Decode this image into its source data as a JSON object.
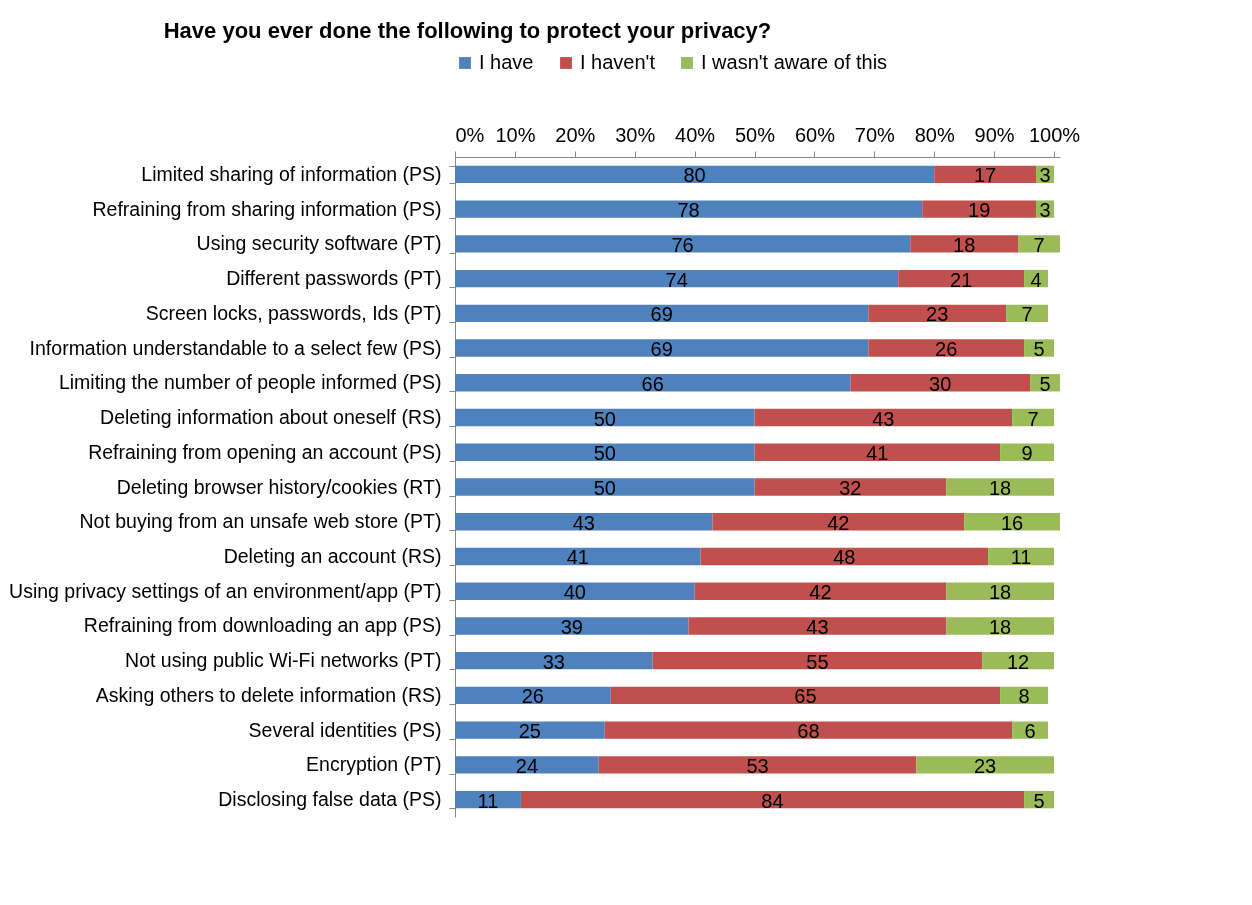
{
  "chart_data": {
    "type": "bar",
    "orientation": "horizontal",
    "stacked": true,
    "title": "Have you ever done the following to protect your privacy?",
    "categories": [
      "Limited sharing of information (PS)",
      "Refraining from sharing information (PS)",
      "Using security software (PT)",
      "Different passwords (PT)",
      "Screen locks, passwords, Ids (PT)",
      "Information understandable to a select few (PS)",
      "Limiting the number of people informed (PS)",
      "Deleting information about oneself (RS)",
      "Refraining from opening an account (PS)",
      "Deleting browser history/cookies (RT)",
      "Not buying from an unsafe web store (PT)",
      "Deleting an account (RS)",
      "Using privacy settings of an environment/app (PT)",
      "Refraining from downloading an app (PS)",
      "Not using public Wi-Fi networks (PT)",
      "Asking others to delete information (RS)",
      "Several identities (PS)",
      "Encryption (PT)",
      "Disclosing false data (PS)"
    ],
    "series": [
      {
        "name": "I have",
        "color": "#4f81bd",
        "values": [
          80,
          78,
          76,
          74,
          69,
          69,
          66,
          50,
          50,
          50,
          43,
          41,
          40,
          39,
          33,
          26,
          25,
          24,
          11
        ]
      },
      {
        "name": "I haven't",
        "color": "#c0504d",
        "values": [
          17,
          19,
          18,
          21,
          23,
          26,
          30,
          43,
          41,
          32,
          42,
          48,
          42,
          43,
          55,
          65,
          68,
          53,
          84
        ]
      },
      {
        "name": "I wasn't aware of this",
        "color": "#9bbb59",
        "values": [
          3,
          3,
          7,
          4,
          7,
          5,
          5,
          7,
          9,
          18,
          16,
          11,
          18,
          18,
          12,
          8,
          6,
          23,
          5
        ]
      }
    ],
    "xlim": [
      0,
      101
    ],
    "xticks": [
      {
        "value": 0,
        "label": "0%"
      },
      {
        "value": 10,
        "label": "10%"
      },
      {
        "value": 20,
        "label": "20%"
      },
      {
        "value": 30,
        "label": "30%"
      },
      {
        "value": 40,
        "label": "40%"
      },
      {
        "value": 50,
        "label": "50%"
      },
      {
        "value": 60,
        "label": "60%"
      },
      {
        "value": 70,
        "label": "70%"
      },
      {
        "value": 80,
        "label": "80%"
      },
      {
        "value": 90,
        "label": "90%"
      },
      {
        "value": 100,
        "label": "100%"
      }
    ],
    "data_labels": true,
    "legend": "top",
    "grid": false
  }
}
